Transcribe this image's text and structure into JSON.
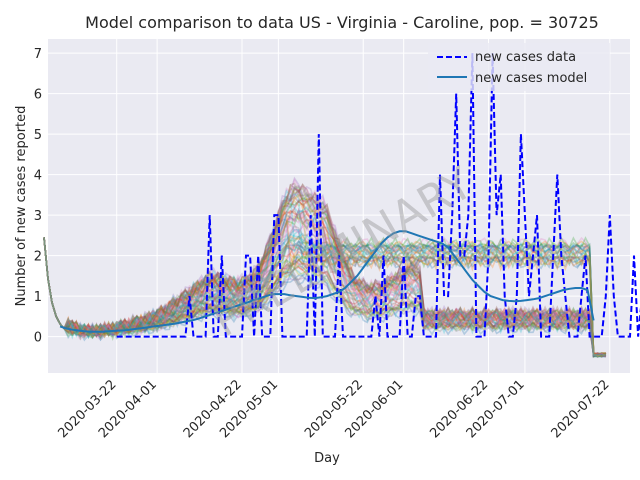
{
  "chart_data": {
    "type": "line",
    "title": "Model comparison to data US - Virginia - Caroline, pop. = 30725",
    "xlabel": "Day",
    "ylabel": "Number of new cases reported",
    "x_start": "2020-03-08",
    "x_range": [
      "2020-03-05",
      "2020-07-27"
    ],
    "ylim": [
      -0.9,
      7.35
    ],
    "y_ticks": [
      0,
      1,
      2,
      3,
      4,
      5,
      6,
      7
    ],
    "x_ticks": [
      "2020-03-22",
      "2020-04-01",
      "2020-04-22",
      "2020-05-01",
      "2020-05-22",
      "2020-06-01",
      "2020-06-22",
      "2020-07-01",
      "2020-07-22"
    ],
    "grid": true,
    "legend_position": "top-right",
    "watermark": "PRELIMINARY",
    "series": [
      {
        "name": "new cases data",
        "style": "dashed",
        "color": "#0000ff",
        "values": [
          0,
          0,
          0,
          0,
          0,
          0,
          0,
          0,
          0,
          0,
          0,
          0,
          0,
          0,
          0,
          0,
          0,
          0,
          0,
          0,
          0,
          0,
          0,
          0,
          0,
          0,
          0,
          0,
          0,
          0,
          0,
          0,
          1,
          0,
          0,
          0,
          0,
          3,
          0,
          0,
          2,
          0,
          0,
          0,
          0,
          0,
          2,
          2,
          0,
          2,
          0,
          0,
          0,
          3,
          3,
          0,
          0,
          0,
          0,
          0,
          0,
          0,
          3,
          0,
          5,
          0,
          0,
          0,
          0,
          2,
          0,
          0,
          0,
          0,
          0,
          0,
          0,
          0,
          1,
          0,
          2,
          0,
          0,
          0,
          0,
          2,
          0,
          0,
          1,
          1,
          0,
          0,
          0,
          0,
          4,
          1,
          1,
          3,
          6,
          2,
          2,
          3,
          7,
          0,
          0,
          0,
          2,
          7,
          3,
          4,
          1,
          0,
          0,
          1,
          5,
          3,
          1,
          2,
          3,
          0,
          0,
          0,
          2,
          4,
          2,
          1,
          0,
          0,
          0,
          1,
          2,
          0,
          0,
          0,
          0,
          1,
          3,
          1,
          0,
          0,
          0,
          0,
          2,
          0,
          1,
          0,
          3,
          2,
          1,
          1,
          1,
          1
        ],
        "shown_offset": 14
      },
      {
        "name": "new cases model",
        "style": "solid",
        "color": "#1f77b4",
        "values": [
          0.25,
          0.2,
          0.17,
          0.15,
          0.13,
          0.12,
          0.12,
          0.12,
          0.13,
          0.14,
          0.15,
          0.16,
          0.18,
          0.2,
          0.22,
          0.24,
          0.26,
          0.28,
          0.3,
          0.32,
          0.35,
          0.38,
          0.41,
          0.45,
          0.5,
          0.55,
          0.6,
          0.65,
          0.7,
          0.75,
          0.8,
          0.85,
          0.9,
          0.95,
          1.0,
          1.05,
          1.05,
          1.05,
          1.02,
          1.0,
          0.98,
          0.96,
          0.95,
          0.97,
          1.0,
          1.05,
          1.1,
          1.2,
          1.35,
          1.5,
          1.7,
          1.9,
          2.1,
          2.3,
          2.45,
          2.55,
          2.6,
          2.6,
          2.55,
          2.5,
          2.45,
          2.4,
          2.35,
          2.3,
          2.2,
          2.0,
          1.8,
          1.6,
          1.4,
          1.25,
          1.1,
          1.0,
          0.95,
          0.9,
          0.88,
          0.87,
          0.88,
          0.9,
          0.92,
          0.95,
          1.0,
          1.05,
          1.1,
          1.15,
          1.18,
          1.2,
          1.2,
          1.15,
          0.4
        ]
      }
    ]
  }
}
